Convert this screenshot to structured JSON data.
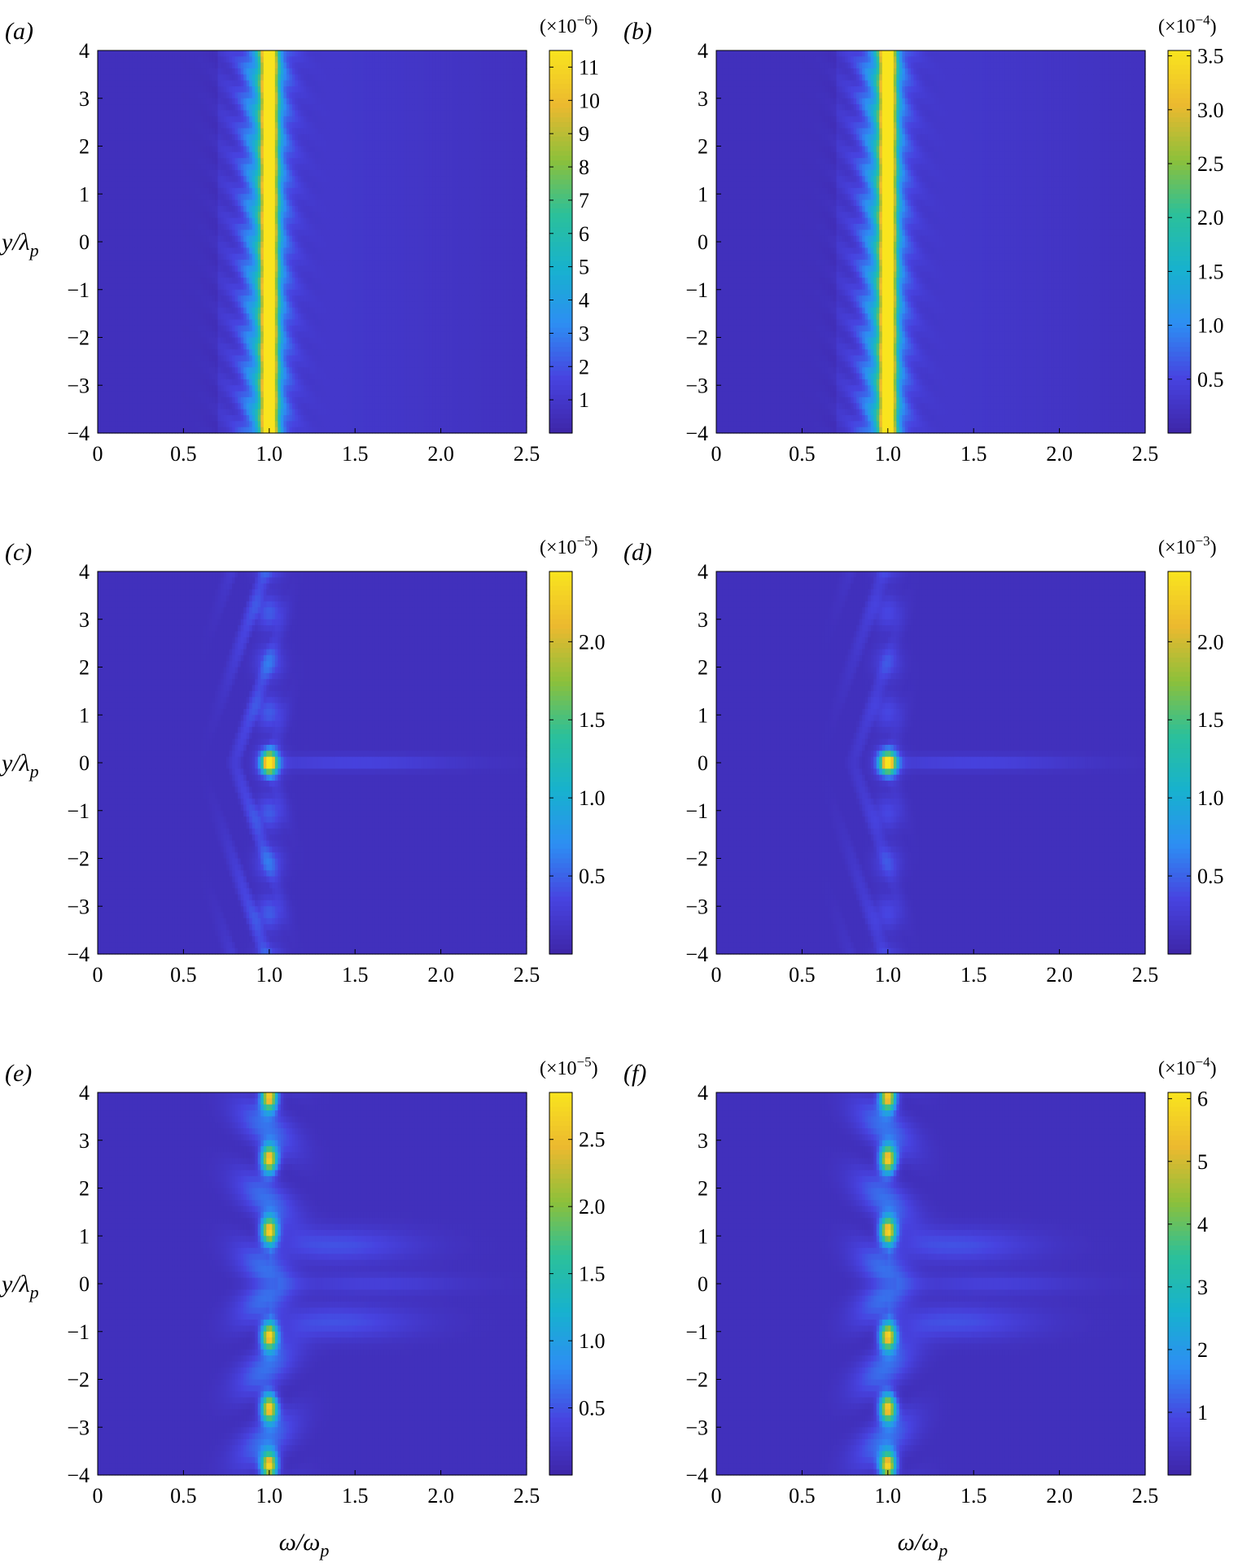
{
  "chart_data": [
    {
      "type": "heatmap",
      "panel_label": "(a)",
      "scale_label": "(×10",
      "scale_exp": "−6",
      "xlabel": "",
      "ylabel": "y/λ",
      "xlim": [
        0,
        2.5
      ],
      "ylim": [
        -4,
        4
      ],
      "x_ticks": [
        "0",
        "0.5",
        "1.0",
        "1.5",
        "2.0",
        "2.5"
      ],
      "y_ticks": [
        "4",
        "3",
        "2",
        "1",
        "0",
        "−1",
        "−2",
        "−3",
        "−4"
      ],
      "colorbar_ticks": [
        "11",
        "10",
        "9",
        "8",
        "7",
        "6",
        "5",
        "4",
        "3",
        "2",
        "1"
      ],
      "colorbar_values": [
        11,
        10,
        9,
        8,
        7,
        6,
        5,
        4,
        3,
        2,
        1
      ],
      "colorbar_range": [
        0,
        11.5
      ],
      "pattern": "band",
      "peak_x": 1.0,
      "peak_value": 11.3
    },
    {
      "type": "heatmap",
      "panel_label": "(b)",
      "scale_label": "(×10",
      "scale_exp": "−4",
      "xlabel": "",
      "ylabel": "",
      "xlim": [
        0,
        2.5
      ],
      "ylim": [
        -4,
        4
      ],
      "x_ticks": [
        "0",
        "0.5",
        "1.0",
        "1.5",
        "2.0",
        "2.5"
      ],
      "y_ticks": [
        "4",
        "3",
        "2",
        "1",
        "0",
        "−1",
        "−2",
        "−3",
        "−4"
      ],
      "colorbar_ticks": [
        "3.5",
        "3.0",
        "2.5",
        "2.0",
        "1.5",
        "1.0",
        "0.5"
      ],
      "colorbar_values": [
        3.5,
        3.0,
        2.5,
        2.0,
        1.5,
        1.0,
        0.5
      ],
      "colorbar_range": [
        0,
        3.55
      ],
      "pattern": "band",
      "peak_x": 1.0,
      "peak_value": 3.5
    },
    {
      "type": "heatmap",
      "panel_label": "(c)",
      "scale_label": "(×10",
      "scale_exp": "−5",
      "xlabel": "",
      "ylabel": "y/λ",
      "xlim": [
        0,
        2.5
      ],
      "ylim": [
        -4,
        4
      ],
      "x_ticks": [
        "0",
        "0.5",
        "1.0",
        "1.5",
        "2.0",
        "2.5"
      ],
      "y_ticks": [
        "4",
        "3",
        "2",
        "1",
        "0",
        "−1",
        "−2",
        "−3",
        "−4"
      ],
      "colorbar_ticks": [
        "2.0",
        "1.5",
        "1.0",
        "0.5"
      ],
      "colorbar_values": [
        2.0,
        1.5,
        1.0,
        0.5
      ],
      "colorbar_range": [
        0,
        2.45
      ],
      "pattern": "spot_wide",
      "peak_x": 1.0,
      "peak_value": 2.4
    },
    {
      "type": "heatmap",
      "panel_label": "(d)",
      "scale_label": "(×10",
      "scale_exp": "−3",
      "xlabel": "",
      "ylabel": "",
      "xlim": [
        0,
        2.5
      ],
      "ylim": [
        -4,
        4
      ],
      "x_ticks": [
        "0",
        "0.5",
        "1.0",
        "1.5",
        "2.0",
        "2.5"
      ],
      "y_ticks": [
        "4",
        "3",
        "2",
        "1",
        "0",
        "−1",
        "−2",
        "−3",
        "−4"
      ],
      "colorbar_ticks": [
        "2.0",
        "1.5",
        "1.0",
        "0.5"
      ],
      "colorbar_values": [
        2.0,
        1.5,
        1.0,
        0.5
      ],
      "colorbar_range": [
        0,
        2.45
      ],
      "pattern": "spot",
      "peak_x": 1.0,
      "peak_value": 2.4
    },
    {
      "type": "heatmap",
      "panel_label": "(e)",
      "scale_label": "(×10",
      "scale_exp": "−5",
      "xlabel": "ω/ω",
      "ylabel": "y/λ",
      "xlim": [
        0,
        2.5
      ],
      "ylim": [
        -4,
        4
      ],
      "x_ticks": [
        "0",
        "0.5",
        "1.0",
        "1.5",
        "2.0",
        "2.5"
      ],
      "y_ticks": [
        "4",
        "3",
        "2",
        "1",
        "0",
        "−1",
        "−2",
        "−3",
        "−4"
      ],
      "colorbar_ticks": [
        "2.5",
        "2.0",
        "1.5",
        "1.0",
        "0.5"
      ],
      "colorbar_values": [
        2.5,
        2.0,
        1.5,
        1.0,
        0.5
      ],
      "colorbar_range": [
        0,
        2.85
      ],
      "pattern": "lobes",
      "peak_x": 1.0,
      "peak_value": 2.8
    },
    {
      "type": "heatmap",
      "panel_label": "(f)",
      "scale_label": "(×10",
      "scale_exp": "−4",
      "xlabel": "ω/ω",
      "ylabel": "",
      "xlim": [
        0,
        2.5
      ],
      "ylim": [
        -4,
        4
      ],
      "x_ticks": [
        "0",
        "0.5",
        "1.0",
        "1.5",
        "2.0",
        "2.5"
      ],
      "y_ticks": [
        "4",
        "3",
        "2",
        "1",
        "0",
        "−1",
        "−2",
        "−3",
        "−4"
      ],
      "colorbar_ticks": [
        "6",
        "5",
        "4",
        "3",
        "2",
        "1"
      ],
      "colorbar_values": [
        6,
        5,
        4,
        3,
        2,
        1
      ],
      "colorbar_range": [
        0,
        6.1
      ],
      "pattern": "lobes",
      "peak_x": 1.0,
      "peak_value": 6.0
    }
  ],
  "colormap": [
    "#3e26a8",
    "#4743e0",
    "#2d8ef3",
    "#17b2ce",
    "#2bc09a",
    "#8dc03a",
    "#ecb92f",
    "#f9e41e"
  ],
  "subscript": "p"
}
